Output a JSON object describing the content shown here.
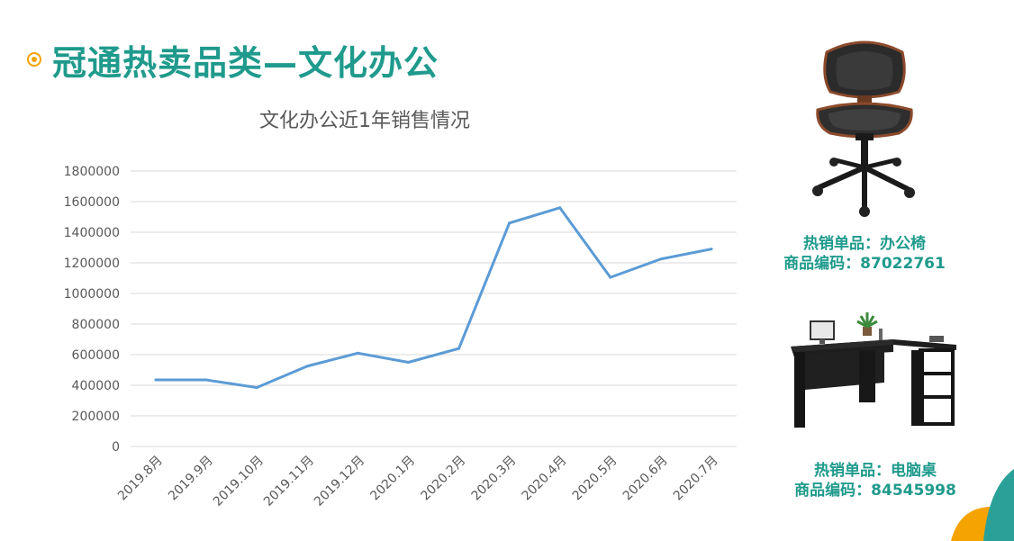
{
  "header": {
    "title": "冠通热卖品类—文化办公"
  },
  "products": [
    {
      "label": "热销单品：办公椅",
      "code": "商品编码：87022761",
      "icon": "office-chair"
    },
    {
      "label": "热销单品：电脑桌",
      "code": "商品编码：84545998",
      "icon": "computer-desk"
    }
  ],
  "colors": {
    "title": "#1f9a8c",
    "bullet": "#f5a300",
    "line": "#5b9bd5",
    "grid": "#d9d9d9",
    "deco_teal": "#2aa198",
    "deco_orange": "#f5a300"
  },
  "chart_data": {
    "type": "line",
    "title": "文化办公近1年销售情况",
    "categories": [
      "2019.8月",
      "2019.9月",
      "2019.10月",
      "2019.11月",
      "2019.12月",
      "2020.1月",
      "2020.2月",
      "2020.3月",
      "2020.4月",
      "2020.5月",
      "2020.6月",
      "2020.7月"
    ],
    "series": [
      {
        "values": [
          435000,
          435000,
          385000,
          525000,
          610000,
          550000,
          640000,
          1460000,
          1560000,
          1105000,
          1225000,
          1290000
        ]
      }
    ],
    "ylim": [
      0,
      1800000
    ],
    "yticks": [
      0,
      200000,
      400000,
      600000,
      800000,
      1000000,
      1200000,
      1400000,
      1600000,
      1800000
    ],
    "grid": true,
    "legend": "none"
  }
}
